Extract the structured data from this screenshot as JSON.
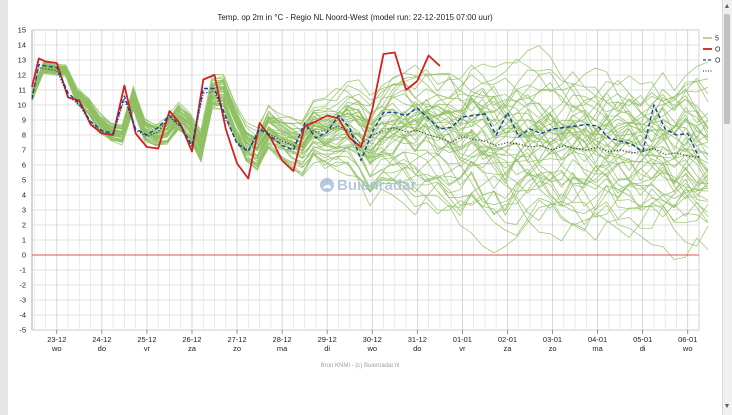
{
  "chart_data": {
    "type": "line",
    "title": "Temp. op 2m in °C - Regio NL Noord-West (model run: 22-12-2015 07:00 uur)",
    "source": "Bron KNMI - (c) Buienradar.nl",
    "watermark": "Buienradar",
    "xlabel": "",
    "ylabel": "",
    "ylim": [
      -5,
      15
    ],
    "yticks": [
      15,
      14,
      13,
      12,
      11,
      10,
      9,
      8,
      7,
      6,
      5,
      4,
      3,
      2,
      1,
      0,
      -1,
      -2,
      -3,
      -4,
      -5
    ],
    "xlim": [
      -0.55,
      14.25
    ],
    "grid": true,
    "legend_position": "top-right",
    "xticks": [
      {
        "date": "23-12",
        "day": "wo"
      },
      {
        "date": "24-12",
        "day": "do"
      },
      {
        "date": "25-12",
        "day": "vr"
      },
      {
        "date": "26-12",
        "day": "za"
      },
      {
        "date": "27-12",
        "day": "zo"
      },
      {
        "date": "28-12",
        "day": "ma"
      },
      {
        "date": "29-12",
        "day": "di"
      },
      {
        "date": "30-12",
        "day": "wo"
      },
      {
        "date": "31-12",
        "day": "do"
      },
      {
        "date": "01-01",
        "day": "vr"
      },
      {
        "date": "02-01",
        "day": "za"
      },
      {
        "date": "03-01",
        "day": "zo"
      },
      {
        "date": "04-01",
        "day": "ma"
      },
      {
        "date": "05-01",
        "day": "di"
      },
      {
        "date": "06-01",
        "day": "wo"
      }
    ],
    "legend": [
      {
        "label": "5",
        "color": "#8fbf63",
        "style": "solid"
      },
      {
        "label": "O",
        "color": "#d42020",
        "style": "solid"
      },
      {
        "label": "O",
        "color": "#1a3fa0",
        "style": "dashed"
      },
      {
        "label": "",
        "color": "#404040",
        "style": "dotted"
      }
    ],
    "reference_line": {
      "y": 0,
      "color": "#e05050"
    },
    "colors": {
      "ensemble": "#8fbf63",
      "operational": "#d42020",
      "control": "#1a3fa0",
      "mean": "#404040"
    },
    "series": [
      {
        "role": "operational",
        "x": [
          -0.55,
          -0.4,
          -0.25,
          0.0,
          0.25,
          0.5,
          0.75,
          1.0,
          1.25,
          1.5,
          1.75,
          2.0,
          2.25,
          2.5,
          2.75,
          3.0,
          3.25,
          3.5,
          3.75,
          4.0,
          4.25,
          4.5,
          4.75,
          5.0,
          5.25,
          5.5,
          5.75,
          6.0,
          6.25,
          6.5,
          6.75,
          7.0,
          7.25,
          7.5,
          7.75,
          8.0,
          8.25,
          8.5,
          8.75,
          9.0,
          9.25
        ],
        "y": [
          11.2,
          13.1,
          12.9,
          12.8,
          10.5,
          10.3,
          8.7,
          8.1,
          8.0,
          11.3,
          8.1,
          7.2,
          7.1,
          9.6,
          8.7,
          6.9,
          11.7,
          12.0,
          8.4,
          6.1,
          5.1,
          8.8,
          7.8,
          6.3,
          5.6,
          8.6,
          8.9,
          9.3,
          9.1,
          7.8,
          7.2,
          9.7,
          13.4,
          13.5,
          11.0,
          11.6,
          13.3,
          12.6,
          null,
          null,
          null
        ]
      },
      {
        "role": "control",
        "x": [
          -0.55,
          -0.4,
          -0.25,
          0.0,
          0.25,
          0.5,
          0.75,
          1.0,
          1.25,
          1.5,
          1.75,
          2.0,
          2.25,
          2.5,
          2.75,
          3.0,
          3.25,
          3.5,
          3.75,
          4.0,
          4.25,
          4.5,
          4.75,
          5.0,
          5.25,
          5.5,
          5.75,
          6.0,
          6.25,
          6.5,
          6.75,
          7.0,
          7.25,
          7.5,
          7.75,
          8.0,
          8.25,
          8.5,
          8.75,
          9.0,
          9.25,
          9.5,
          9.75,
          10.0,
          10.25,
          10.5,
          10.75,
          11.0,
          11.25,
          11.5,
          11.75,
          12.0,
          12.25,
          12.5,
          12.75,
          13.0,
          13.25,
          13.5,
          13.75,
          14.0,
          14.25
        ],
        "y": [
          10.4,
          12.7,
          12.6,
          12.5,
          10.8,
          10.1,
          8.9,
          8.3,
          8.1,
          10.6,
          8.4,
          8.0,
          8.5,
          9.3,
          8.6,
          7.3,
          11.1,
          11.1,
          9.2,
          7.4,
          6.9,
          8.4,
          7.9,
          7.3,
          7.0,
          8.8,
          7.8,
          8.2,
          9.3,
          8.5,
          6.3,
          8.2,
          9.5,
          9.5,
          9.3,
          9.8,
          9.1,
          8.4,
          8.5,
          9.2,
          9.3,
          9.4,
          8.0,
          9.5,
          7.9,
          8.4,
          8.1,
          8.4,
          8.5,
          8.6,
          8.7,
          8.6,
          7.8,
          7.6,
          7.4,
          6.9,
          10.0,
          8.4,
          8.0,
          8.1,
          6.5
        ]
      },
      {
        "role": "mean",
        "x": [
          -0.55,
          -0.4,
          -0.25,
          0.0,
          0.25,
          0.5,
          0.75,
          1.0,
          1.25,
          1.5,
          1.75,
          2.0,
          2.25,
          2.5,
          2.75,
          3.0,
          3.25,
          3.5,
          3.75,
          4.0,
          4.25,
          4.5,
          4.75,
          5.0,
          5.25,
          5.5,
          5.75,
          6.0,
          6.25,
          6.5,
          6.75,
          7.0,
          7.25,
          7.5,
          7.75,
          8.0,
          8.25,
          8.5,
          8.75,
          9.0,
          9.25,
          9.5,
          9.75,
          10.0,
          10.25,
          10.5,
          10.75,
          11.0,
          11.25,
          11.5,
          11.75,
          12.0,
          12.25,
          12.5,
          12.75,
          13.0,
          13.25,
          13.5,
          13.75,
          14.0,
          14.25
        ],
        "y": [
          10.6,
          12.5,
          12.4,
          12.3,
          10.6,
          10.0,
          8.8,
          8.2,
          8.0,
          10.4,
          8.3,
          7.9,
          8.2,
          9.2,
          8.5,
          7.2,
          10.8,
          10.9,
          9.0,
          7.5,
          7.0,
          8.5,
          8.0,
          7.6,
          7.3,
          8.5,
          8.2,
          8.3,
          8.6,
          8.2,
          7.4,
          8.0,
          8.3,
          8.5,
          8.2,
          8.3,
          8.0,
          7.8,
          7.5,
          7.9,
          7.7,
          7.6,
          7.3,
          7.5,
          7.4,
          7.2,
          7.3,
          7.0,
          7.3,
          7.1,
          7.0,
          7.2,
          6.9,
          7.0,
          6.8,
          6.9,
          7.1,
          6.7,
          6.8,
          6.6,
          6.5
        ]
      }
    ],
    "ensemble": {
      "count": 50,
      "x_start": -0.55,
      "x_step": 0.25,
      "base": [
        10.6,
        12.5,
        12.4,
        12.3,
        10.6,
        10.0,
        8.8,
        8.2,
        8.0,
        10.4,
        8.3,
        7.9,
        8.2,
        9.2,
        8.5,
        7.2,
        10.8,
        10.9,
        9.0,
        7.5,
        7.0,
        8.5,
        8.0,
        7.6,
        7.3,
        8.5,
        8.2,
        8.3,
        8.6,
        8.2,
        7.4,
        8.0,
        8.3,
        8.5,
        8.2,
        8.3,
        8.0,
        7.8,
        7.5,
        7.9,
        7.7,
        7.6,
        7.3,
        7.5,
        7.4,
        7.2,
        7.3,
        7.0,
        7.3,
        7.1,
        7.0,
        7.2,
        6.9,
        7.0,
        6.8,
        6.9,
        7.1,
        6.7,
        6.8,
        6.6,
        6.5
      ],
      "spread": [
        0.3,
        0.3,
        0.3,
        0.3,
        0.4,
        0.4,
        0.5,
        0.5,
        0.5,
        0.6,
        0.6,
        0.6,
        0.7,
        0.7,
        0.7,
        0.8,
        0.8,
        0.9,
        0.9,
        1.0,
        1.0,
        1.1,
        1.2,
        1.3,
        1.4,
        1.6,
        1.8,
        2.0,
        2.2,
        2.4,
        2.6,
        2.8,
        3.0,
        3.2,
        3.3,
        3.4,
        3.5,
        3.6,
        3.7,
        3.8,
        3.9,
        3.9,
        4.0,
        4.0,
        4.0,
        4.0,
        4.0,
        4.0,
        4.0,
        4.0,
        4.0,
        4.0,
        4.0,
        4.0,
        4.0,
        4.0,
        4.0,
        4.0,
        4.0,
        4.0,
        4.0
      ]
    }
  },
  "scrollbar": {
    "up_icon": "▲",
    "down_icon": "▼"
  }
}
